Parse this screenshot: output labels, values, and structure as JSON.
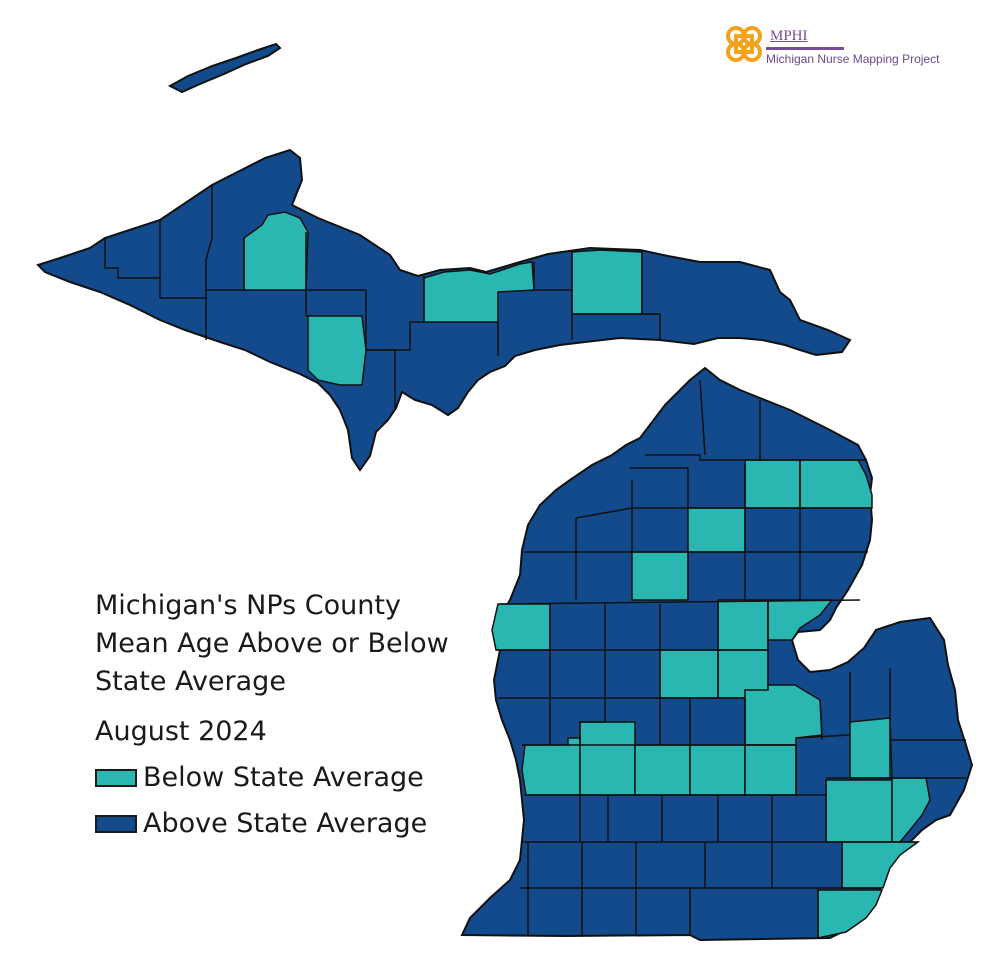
{
  "map": {
    "title_lines": [
      "Michigan's NPs County",
      "Mean Age Above or Below",
      "State Average"
    ],
    "date": "August 2024",
    "legend": [
      {
        "label": "Below State Average",
        "color": "#2ab7b2"
      },
      {
        "label": "Above State Average",
        "color": "#124a8b"
      }
    ],
    "border_color": "#111111"
  },
  "logo": {
    "acronym": "MPHI",
    "name": "Michigan Nurse Mapping Project",
    "icon": "knot-icon",
    "colors": {
      "knot": "#f3a21c",
      "text": "#7a4c98"
    }
  }
}
